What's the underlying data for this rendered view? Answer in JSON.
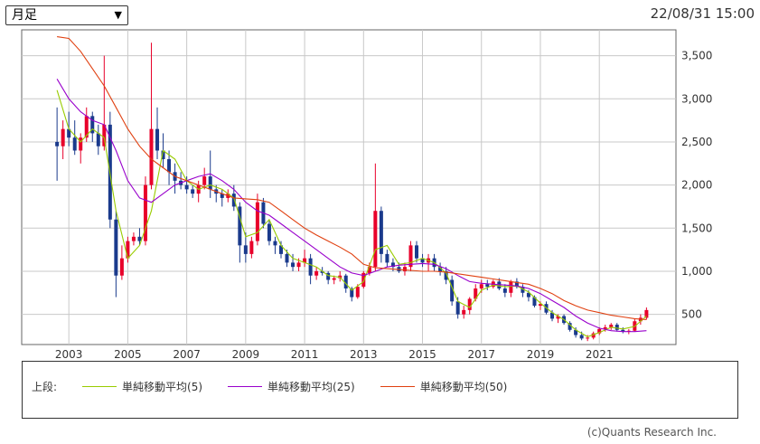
{
  "header": {
    "period_select": "月足",
    "timestamp": "22/08/31 15:00"
  },
  "legend": {
    "prefix": "上段:",
    "items": [
      {
        "label": "単純移動平均(5)",
        "color": "#99cc00"
      },
      {
        "label": "単純移動平均(25)",
        "color": "#9900cc"
      },
      {
        "label": "単純移動平均(50)",
        "color": "#e04010"
      }
    ]
  },
  "copyright": "(c)Quants Research Inc.",
  "chart_data": {
    "type": "candlestick",
    "x_ticks": [
      "2003",
      "2005",
      "2007",
      "2009",
      "2011",
      "2013",
      "2015",
      "2017",
      "2019",
      "2021"
    ],
    "y_ticks": [
      "500",
      "1,000",
      "1,500",
      "2,000",
      "2,500",
      "3,000",
      "3,500"
    ],
    "y_tick_values": [
      500,
      1000,
      1500,
      2000,
      2500,
      3000,
      3500
    ],
    "xlim": [
      2001.4,
      2023.6
    ],
    "ylim": [
      150,
      3800
    ],
    "grid": true,
    "colors": {
      "up": "#e8002a",
      "down": "#1a3a8c"
    },
    "candles": [
      [
        2002.6,
        2500,
        2900,
        2050,
        2450
      ],
      [
        2002.8,
        2450,
        2750,
        2300,
        2650
      ],
      [
        2003.0,
        2650,
        2850,
        2450,
        2550
      ],
      [
        2003.2,
        2550,
        2750,
        2350,
        2400
      ],
      [
        2003.4,
        2400,
        2600,
        2250,
        2550
      ],
      [
        2003.6,
        2550,
        2900,
        2500,
        2800
      ],
      [
        2003.8,
        2800,
        2850,
        2500,
        2600
      ],
      [
        2004.0,
        2600,
        2700,
        2350,
        2450
      ],
      [
        2004.2,
        2450,
        3500,
        2400,
        2700
      ],
      [
        2004.4,
        2700,
        2850,
        1500,
        1600
      ],
      [
        2004.6,
        1600,
        1700,
        700,
        950
      ],
      [
        2004.8,
        950,
        1300,
        900,
        1150
      ],
      [
        2005.0,
        1150,
        1400,
        1100,
        1350
      ],
      [
        2005.2,
        1350,
        1450,
        1300,
        1400
      ],
      [
        2005.4,
        1400,
        1500,
        1300,
        1350
      ],
      [
        2005.6,
        1350,
        2100,
        1300,
        2000
      ],
      [
        2005.8,
        2000,
        3650,
        1950,
        2650
      ],
      [
        2006.0,
        2650,
        2900,
        2300,
        2400
      ],
      [
        2006.2,
        2400,
        2600,
        2200,
        2300
      ],
      [
        2006.4,
        2300,
        2400,
        2000,
        2150
      ],
      [
        2006.6,
        2150,
        2250,
        1900,
        2050
      ],
      [
        2006.8,
        2050,
        2150,
        1950,
        2000
      ],
      [
        2007.0,
        2000,
        2100,
        1900,
        1950
      ],
      [
        2007.2,
        1950,
        2000,
        1850,
        1900
      ],
      [
        2007.4,
        1900,
        2050,
        1800,
        2000
      ],
      [
        2007.6,
        2000,
        2200,
        1950,
        2100
      ],
      [
        2007.8,
        2100,
        2400,
        1850,
        1950
      ],
      [
        2008.0,
        1950,
        2000,
        1800,
        1900
      ],
      [
        2008.2,
        1900,
        1950,
        1750,
        1850
      ],
      [
        2008.4,
        1850,
        1950,
        1800,
        1900
      ],
      [
        2008.6,
        1900,
        2000,
        1700,
        1750
      ],
      [
        2008.8,
        1750,
        1800,
        1100,
        1300
      ],
      [
        2009.0,
        1300,
        1450,
        1100,
        1200
      ],
      [
        2009.2,
        1200,
        1400,
        1150,
        1350
      ],
      [
        2009.4,
        1350,
        1900,
        1300,
        1800
      ],
      [
        2009.6,
        1800,
        1850,
        1500,
        1550
      ],
      [
        2009.8,
        1550,
        1600,
        1300,
        1350
      ],
      [
        2010.0,
        1350,
        1400,
        1200,
        1300
      ],
      [
        2010.2,
        1300,
        1350,
        1150,
        1200
      ],
      [
        2010.4,
        1200,
        1250,
        1050,
        1100
      ],
      [
        2010.6,
        1100,
        1200,
        1000,
        1050
      ],
      [
        2010.8,
        1050,
        1150,
        1000,
        1100
      ],
      [
        2011.0,
        1100,
        1250,
        1050,
        1150
      ],
      [
        2011.2,
        1150,
        1200,
        850,
        950
      ],
      [
        2011.4,
        950,
        1050,
        900,
        1000
      ],
      [
        2011.6,
        1000,
        1050,
        950,
        980
      ],
      [
        2011.8,
        980,
        1000,
        850,
        900
      ],
      [
        2012.0,
        900,
        950,
        850,
        920
      ],
      [
        2012.2,
        920,
        1000,
        880,
        950
      ],
      [
        2012.4,
        950,
        970,
        750,
        800
      ],
      [
        2012.6,
        800,
        820,
        650,
        700
      ],
      [
        2012.8,
        700,
        850,
        680,
        820
      ],
      [
        2013.0,
        820,
        1000,
        800,
        980
      ],
      [
        2013.2,
        980,
        1100,
        950,
        1050
      ],
      [
        2013.4,
        1050,
        2250,
        1000,
        1700
      ],
      [
        2013.6,
        1700,
        1750,
        1100,
        1200
      ],
      [
        2013.8,
        1200,
        1250,
        1050,
        1100
      ],
      [
        2014.0,
        1100,
        1150,
        1000,
        1050
      ],
      [
        2014.2,
        1050,
        1100,
        980,
        1000
      ],
      [
        2014.4,
        1000,
        1100,
        950,
        1050
      ],
      [
        2014.6,
        1050,
        1350,
        1000,
        1300
      ],
      [
        2014.8,
        1300,
        1350,
        1100,
        1150
      ],
      [
        2015.0,
        1150,
        1200,
        1050,
        1100
      ],
      [
        2015.2,
        1100,
        1200,
        1000,
        1150
      ],
      [
        2015.4,
        1150,
        1200,
        1000,
        1050
      ],
      [
        2015.6,
        1050,
        1100,
        950,
        1000
      ],
      [
        2015.8,
        1000,
        1050,
        850,
        900
      ],
      [
        2016.0,
        900,
        950,
        600,
        650
      ],
      [
        2016.2,
        650,
        700,
        450,
        500
      ],
      [
        2016.4,
        500,
        600,
        450,
        550
      ],
      [
        2016.6,
        550,
        700,
        500,
        680
      ],
      [
        2016.8,
        680,
        850,
        650,
        800
      ],
      [
        2017.0,
        800,
        900,
        750,
        850
      ],
      [
        2017.2,
        850,
        900,
        780,
        820
      ],
      [
        2017.4,
        820,
        900,
        800,
        880
      ],
      [
        2017.6,
        880,
        920,
        780,
        800
      ],
      [
        2017.8,
        800,
        850,
        700,
        750
      ],
      [
        2018.0,
        750,
        900,
        700,
        880
      ],
      [
        2018.2,
        880,
        920,
        800,
        820
      ],
      [
        2018.4,
        820,
        850,
        700,
        750
      ],
      [
        2018.6,
        750,
        780,
        650,
        700
      ],
      [
        2018.8,
        700,
        720,
        580,
        600
      ],
      [
        2019.0,
        600,
        650,
        550,
        620
      ],
      [
        2019.2,
        620,
        650,
        500,
        520
      ],
      [
        2019.4,
        520,
        550,
        420,
        450
      ],
      [
        2019.6,
        450,
        500,
        400,
        480
      ],
      [
        2019.8,
        480,
        500,
        380,
        400
      ],
      [
        2020.0,
        400,
        420,
        300,
        320
      ],
      [
        2020.2,
        320,
        350,
        230,
        260
      ],
      [
        2020.4,
        260,
        300,
        200,
        220
      ],
      [
        2020.6,
        220,
        260,
        190,
        230
      ],
      [
        2020.8,
        230,
        300,
        210,
        280
      ],
      [
        2021.0,
        280,
        350,
        260,
        330
      ],
      [
        2021.2,
        330,
        380,
        300,
        350
      ],
      [
        2021.4,
        350,
        400,
        320,
        380
      ],
      [
        2021.6,
        380,
        400,
        300,
        320
      ],
      [
        2021.8,
        320,
        350,
        280,
        300
      ],
      [
        2022.0,
        300,
        330,
        270,
        310
      ],
      [
        2022.2,
        310,
        450,
        300,
        420
      ],
      [
        2022.4,
        420,
        500,
        380,
        460
      ],
      [
        2022.6,
        460,
        580,
        440,
        550
      ]
    ],
    "series": [
      {
        "name": "単純移動平均(5)",
        "color": "#99cc00",
        "points": [
          [
            2002.6,
            3100
          ],
          [
            2003.0,
            2650
          ],
          [
            2003.4,
            2500
          ],
          [
            2003.8,
            2650
          ],
          [
            2004.2,
            2550
          ],
          [
            2004.6,
            1700
          ],
          [
            2005.0,
            1150
          ],
          [
            2005.4,
            1300
          ],
          [
            2005.8,
            1700
          ],
          [
            2006.2,
            2400
          ],
          [
            2006.6,
            2300
          ],
          [
            2007.0,
            2050
          ],
          [
            2007.4,
            1950
          ],
          [
            2007.8,
            2000
          ],
          [
            2008.2,
            1950
          ],
          [
            2008.6,
            1850
          ],
          [
            2009.0,
            1400
          ],
          [
            2009.4,
            1450
          ],
          [
            2009.8,
            1600
          ],
          [
            2010.2,
            1300
          ],
          [
            2010.6,
            1150
          ],
          [
            2011.0,
            1100
          ],
          [
            2011.4,
            1050
          ],
          [
            2011.8,
            950
          ],
          [
            2012.2,
            930
          ],
          [
            2012.6,
            780
          ],
          [
            2013.0,
            880
          ],
          [
            2013.4,
            1250
          ],
          [
            2013.8,
            1300
          ],
          [
            2014.2,
            1080
          ],
          [
            2014.6,
            1100
          ],
          [
            2015.0,
            1150
          ],
          [
            2015.4,
            1100
          ],
          [
            2015.8,
            980
          ],
          [
            2016.2,
            650
          ],
          [
            2016.6,
            580
          ],
          [
            2017.0,
            780
          ],
          [
            2017.4,
            840
          ],
          [
            2017.8,
            820
          ],
          [
            2018.2,
            830
          ],
          [
            2018.6,
            760
          ],
          [
            2019.0,
            630
          ],
          [
            2019.4,
            520
          ],
          [
            2019.8,
            440
          ],
          [
            2020.2,
            320
          ],
          [
            2020.6,
            240
          ],
          [
            2021.0,
            290
          ],
          [
            2021.4,
            350
          ],
          [
            2021.8,
            330
          ],
          [
            2022.2,
            360
          ],
          [
            2022.6,
            480
          ]
        ]
      },
      {
        "name": "単純移動平均(25)",
        "color": "#9900cc",
        "points": [
          [
            2002.6,
            3230
          ],
          [
            2003.0,
            3000
          ],
          [
            2003.4,
            2850
          ],
          [
            2003.8,
            2750
          ],
          [
            2004.2,
            2700
          ],
          [
            2004.6,
            2400
          ],
          [
            2005.0,
            2050
          ],
          [
            2005.4,
            1850
          ],
          [
            2005.8,
            1800
          ],
          [
            2006.2,
            1900
          ],
          [
            2006.6,
            2000
          ],
          [
            2007.0,
            2050
          ],
          [
            2007.4,
            2100
          ],
          [
            2007.8,
            2130
          ],
          [
            2008.2,
            2050
          ],
          [
            2008.6,
            1950
          ],
          [
            2009.0,
            1800
          ],
          [
            2009.4,
            1700
          ],
          [
            2009.8,
            1650
          ],
          [
            2010.2,
            1550
          ],
          [
            2010.6,
            1450
          ],
          [
            2011.0,
            1350
          ],
          [
            2011.4,
            1250
          ],
          [
            2011.8,
            1150
          ],
          [
            2012.2,
            1050
          ],
          [
            2012.6,
            980
          ],
          [
            2013.0,
            950
          ],
          [
            2013.4,
            1000
          ],
          [
            2013.8,
            1050
          ],
          [
            2014.2,
            1070
          ],
          [
            2014.6,
            1080
          ],
          [
            2015.0,
            1090
          ],
          [
            2015.4,
            1080
          ],
          [
            2015.8,
            1030
          ],
          [
            2016.2,
            950
          ],
          [
            2016.6,
            880
          ],
          [
            2017.0,
            860
          ],
          [
            2017.4,
            850
          ],
          [
            2017.8,
            840
          ],
          [
            2018.2,
            830
          ],
          [
            2018.6,
            800
          ],
          [
            2019.0,
            740
          ],
          [
            2019.4,
            660
          ],
          [
            2019.8,
            580
          ],
          [
            2020.2,
            480
          ],
          [
            2020.6,
            400
          ],
          [
            2021.0,
            340
          ],
          [
            2021.4,
            310
          ],
          [
            2021.8,
            300
          ],
          [
            2022.2,
            300
          ],
          [
            2022.6,
            310
          ]
        ]
      },
      {
        "name": "単純移動平均(50)",
        "color": "#e04010",
        "points": [
          [
            2002.6,
            3720
          ],
          [
            2003.0,
            3700
          ],
          [
            2003.4,
            3550
          ],
          [
            2003.8,
            3350
          ],
          [
            2004.2,
            3150
          ],
          [
            2004.6,
            2900
          ],
          [
            2005.0,
            2650
          ],
          [
            2005.4,
            2450
          ],
          [
            2005.8,
            2300
          ],
          [
            2006.2,
            2200
          ],
          [
            2006.6,
            2100
          ],
          [
            2007.0,
            2050
          ],
          [
            2007.4,
            2000
          ],
          [
            2007.8,
            1950
          ],
          [
            2008.2,
            1900
          ],
          [
            2008.6,
            1850
          ],
          [
            2009.0,
            1840
          ],
          [
            2009.4,
            1830
          ],
          [
            2009.8,
            1800
          ],
          [
            2010.2,
            1700
          ],
          [
            2010.6,
            1600
          ],
          [
            2011.0,
            1500
          ],
          [
            2011.4,
            1420
          ],
          [
            2011.8,
            1350
          ],
          [
            2012.2,
            1280
          ],
          [
            2012.6,
            1200
          ],
          [
            2013.0,
            1080
          ],
          [
            2013.4,
            1040
          ],
          [
            2013.8,
            1030
          ],
          [
            2014.2,
            1020
          ],
          [
            2014.6,
            1010
          ],
          [
            2015.0,
            1000
          ],
          [
            2015.4,
            1000
          ],
          [
            2015.8,
            990
          ],
          [
            2016.2,
            970
          ],
          [
            2016.6,
            950
          ],
          [
            2017.0,
            930
          ],
          [
            2017.4,
            910
          ],
          [
            2017.8,
            890
          ],
          [
            2018.2,
            870
          ],
          [
            2018.6,
            850
          ],
          [
            2019.0,
            800
          ],
          [
            2019.4,
            740
          ],
          [
            2019.8,
            660
          ],
          [
            2020.2,
            600
          ],
          [
            2020.6,
            550
          ],
          [
            2021.0,
            520
          ],
          [
            2021.4,
            490
          ],
          [
            2021.8,
            470
          ],
          [
            2022.2,
            450
          ],
          [
            2022.6,
            440
          ]
        ]
      }
    ]
  }
}
